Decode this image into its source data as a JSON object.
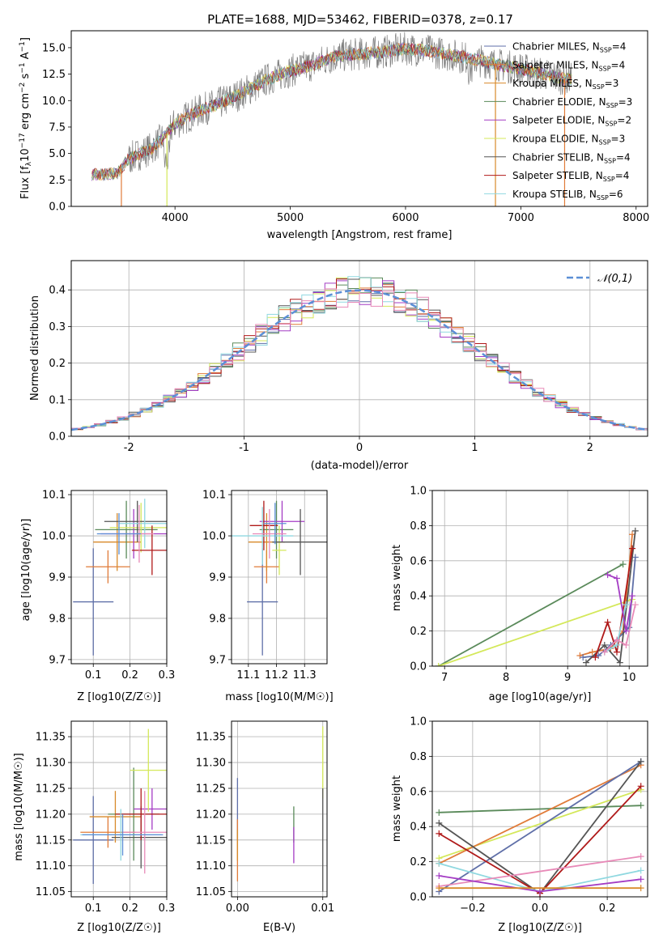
{
  "figure_title": "PLATE=1688, MJD=53462, FIBERID=0378, z=0.17",
  "colors": {
    "Chabrier MILES": "#5f6fa8",
    "Salpeter MILES": "#e07b39",
    "Kroupa MILES": "#d88a2a",
    "Chabrier ELODIE": "#5a8a5a",
    "Salpeter ELODIE": "#a43cc4",
    "Kroupa ELODIE": "#d4e85a",
    "Chabrier STELIB": "#555555",
    "Salpeter STELIB": "#b01a1a",
    "Kroupa STELIB": "#8fd8e0",
    "spectrum": "#808080",
    "normal": "#5b8fd6",
    "extra_pink": "#e88ab8",
    "extra_blue": "#5b8fd6"
  },
  "chart_data": [
    {
      "id": "spectrum",
      "type": "line",
      "title": "PLATE=1688, MJD=53462, FIBERID=0378, z=0.17",
      "xlabel": "wavelength [Angstrom, rest frame]",
      "ylabel": "Flux [f_λ10^-17 erg cm^-2 s^-1 A^-1]",
      "xlim": [
        3100,
        8100
      ],
      "ylim": [
        0,
        16.6
      ],
      "xticks": [
        4000,
        5000,
        6000,
        7000,
        8000
      ],
      "yticks": [
        0.0,
        2.5,
        5.0,
        7.5,
        10.0,
        12.5,
        15.0
      ],
      "legend_position": "top-right",
      "data_range": [
        3280,
        7440
      ],
      "continuum": {
        "x": [
          3280,
          3500,
          3600,
          3800,
          3900,
          4000,
          4200,
          4400,
          4600,
          4800,
          5000,
          5200,
          5400,
          5600,
          5800,
          6000,
          6200,
          6400,
          6600,
          6800,
          7000,
          7200,
          7400
        ],
        "y": [
          3.0,
          3.1,
          4.5,
          5.5,
          6.5,
          7.8,
          9.0,
          9.8,
          10.8,
          12.0,
          12.8,
          13.4,
          14.2,
          14.4,
          14.6,
          14.9,
          14.7,
          14.3,
          13.9,
          13.4,
          13.0,
          12.5,
          12.0
        ]
      },
      "series": [
        {
          "name": "Chabrier MILES, N_SSP=4",
          "label": "Chabrier MILES, N",
          "n_ssp": "=4"
        },
        {
          "name": "Salpeter MILES, N_SSP=4",
          "label": "Salpeter MILES, N",
          "n_ssp": "=4"
        },
        {
          "name": "Kroupa MILES, N_SSP=3",
          "label": "Kroupa MILES, N",
          "n_ssp": "=3"
        },
        {
          "name": "Chabrier ELODIE, N_SSP=3",
          "label": "Chabrier ELODIE, N",
          "n_ssp": "=3"
        },
        {
          "name": "Salpeter ELODIE, N_SSP=2",
          "label": "Salpeter ELODIE, N",
          "n_ssp": "=2"
        },
        {
          "name": "Kroupa ELODIE, N_SSP=3",
          "label": "Kroupa ELODIE, N",
          "n_ssp": "=3"
        },
        {
          "name": "Chabrier STELIB, N_SSP=4",
          "label": "Chabrier STELIB, N",
          "n_ssp": "=4"
        },
        {
          "name": "Salpeter STELIB, N_SSP=4",
          "label": "Salpeter STELIB, N",
          "n_ssp": "=4"
        },
        {
          "name": "Kroupa STELIB, N_SSP=6",
          "label": "Kroupa STELIB, N",
          "n_ssp": "=6"
        }
      ]
    },
    {
      "id": "residuals",
      "type": "histogram",
      "xlabel": "(data-model)/error",
      "ylabel": "Normed distribution",
      "xlim": [
        -2.5,
        2.5
      ],
      "ylim": [
        0,
        0.48
      ],
      "xticks": [
        -2,
        -1,
        0,
        1,
        2
      ],
      "yticks": [
        0.0,
        0.1,
        0.2,
        0.3,
        0.4
      ],
      "grid": true,
      "legend_position": "top-right",
      "normal_label": "𝒩(0,1)",
      "bin_width": 0.1,
      "bin_start": -2.5
    },
    {
      "id": "age_vs_Z",
      "type": "errorbar",
      "xlabel": "Z [log10(Z/Z☉)]",
      "ylabel": "age  [log10(age/yr)]",
      "xlim": [
        0.04,
        0.3
      ],
      "ylim": [
        9.69,
        10.11
      ],
      "xticks": [
        0.1,
        0.2,
        0.3
      ],
      "yticks": [
        9.7,
        9.8,
        9.9,
        10.0,
        10.1
      ],
      "grid": true,
      "points": [
        {
          "x": 0.1,
          "xerr": 0.055,
          "y": 9.84,
          "yerr": 0.13
        },
        {
          "x": 0.14,
          "xerr": 0.06,
          "y": 9.925,
          "yerr": 0.04
        },
        {
          "x": 0.165,
          "xerr": 0.065,
          "y": 9.985,
          "yerr": 0.07
        },
        {
          "x": 0.19,
          "xerr": 0.085,
          "y": 10.015,
          "yerr": 0.07
        },
        {
          "x": 0.21,
          "xerr": 0.09,
          "y": 10.005,
          "yerr": 0.06
        },
        {
          "x": 0.23,
          "xerr": 0.085,
          "y": 10.02,
          "yerr": 0.06
        },
        {
          "x": 0.22,
          "xerr": 0.09,
          "y": 10.035,
          "yerr": 0.05
        },
        {
          "x": 0.26,
          "xerr": 0.055,
          "y": 9.965,
          "yerr": 0.06
        },
        {
          "x": 0.24,
          "xerr": 0.07,
          "y": 10.03,
          "yerr": 0.06
        },
        {
          "x": 0.225,
          "xerr": 0.04,
          "y": 10.005,
          "yerr": 0.07
        },
        {
          "x": 0.17,
          "xerr": 0.06,
          "y": 10.005,
          "yerr": 0.05
        }
      ]
    },
    {
      "id": "age_vs_mass",
      "type": "errorbar",
      "xlabel": "mass [log10(M/M☉)]",
      "xlim": [
        11.04,
        11.38
      ],
      "ylim": [
        9.69,
        10.11
      ],
      "xticks": [
        11.1,
        11.2,
        11.3
      ],
      "yticks": [
        9.7,
        9.8,
        9.9,
        10.0,
        10.1
      ],
      "grid": true,
      "points": [
        {
          "x": 11.15,
          "xerr": 0.055,
          "y": 9.84,
          "yerr": 0.13
        },
        {
          "x": 11.165,
          "xerr": 0.045,
          "y": 9.925,
          "yerr": 0.04
        },
        {
          "x": 11.165,
          "xerr": 0.065,
          "y": 9.985,
          "yerr": 0.07
        },
        {
          "x": 11.2,
          "xerr": 0.06,
          "y": 10.015,
          "yerr": 0.07
        },
        {
          "x": 11.22,
          "xerr": 0.08,
          "y": 10.035,
          "yerr": 0.05
        },
        {
          "x": 11.21,
          "xerr": 0.025,
          "y": 9.965,
          "yerr": 0.06
        },
        {
          "x": 11.285,
          "xerr": 0.1,
          "y": 9.985,
          "yerr": 0.08
        },
        {
          "x": 11.155,
          "xerr": 0.05,
          "y": 10.025,
          "yerr": 0.06
        },
        {
          "x": 11.15,
          "xerr": 0.11,
          "y": 10.0,
          "yerr": 0.07
        },
        {
          "x": 11.175,
          "xerr": 0.06,
          "y": 10.005,
          "yerr": 0.06
        },
        {
          "x": 11.195,
          "xerr": 0.04,
          "y": 10.03,
          "yerr": 0.05
        }
      ]
    },
    {
      "id": "weight_vs_age",
      "type": "line",
      "xlabel": "age  [log10(age/yr)]",
      "ylabel": "mass weight",
      "xlim": [
        6.8,
        10.3
      ],
      "ylim": [
        0,
        1.0
      ],
      "xticks": [
        7,
        8,
        9,
        10
      ],
      "yticks": [
        0.0,
        0.2,
        0.4,
        0.6,
        0.8,
        1.0
      ],
      "grid": true,
      "series": [
        {
          "x": [
            6.9,
            9.9
          ],
          "y": [
            0.0,
            0.58
          ]
        },
        {
          "x": [
            6.9,
            10.05
          ],
          "y": [
            0.0,
            0.38
          ]
        },
        {
          "x": [
            9.2,
            9.4,
            9.7,
            9.9,
            10.05
          ],
          "y": [
            0.06,
            0.08,
            0.1,
            0.2,
            0.75
          ]
        },
        {
          "x": [
            9.25,
            9.5,
            9.7,
            10.0,
            10.1
          ],
          "y": [
            0.05,
            0.06,
            0.12,
            0.22,
            0.62
          ]
        },
        {
          "x": [
            9.3,
            9.6,
            9.85,
            10.1
          ],
          "y": [
            0.02,
            0.12,
            0.02,
            0.77
          ]
        },
        {
          "x": [
            9.45,
            9.65,
            9.8,
            10.05
          ],
          "y": [
            0.05,
            0.25,
            0.08,
            0.67
          ]
        },
        {
          "x": [
            9.6,
            9.8,
            9.95
          ],
          "y": [
            0.08,
            0.12,
            0.35
          ]
        },
        {
          "x": [
            9.6,
            9.8,
            9.95,
            10.1
          ],
          "y": [
            0.08,
            0.15,
            0.12,
            0.35
          ]
        },
        {
          "x": [
            9.65,
            9.8,
            9.95,
            10.05
          ],
          "y": [
            0.52,
            0.5,
            0.2,
            0.4
          ]
        }
      ]
    },
    {
      "id": "mass_vs_Z",
      "type": "errorbar",
      "xlabel": "Z [log10(Z/Z☉)]",
      "ylabel": "mass [log10(M/M☉)]",
      "xlim": [
        0.04,
        0.3
      ],
      "ylim": [
        11.04,
        11.38
      ],
      "xticks": [
        0.1,
        0.2,
        0.3
      ],
      "yticks": [
        11.05,
        11.1,
        11.15,
        11.2,
        11.25,
        11.3,
        11.35
      ],
      "grid": true,
      "points": [
        {
          "x": 0.1,
          "xerr": 0.055,
          "y": 11.15,
          "yerr": 0.085
        },
        {
          "x": 0.14,
          "xerr": 0.075,
          "y": 11.165,
          "yerr": 0.03
        },
        {
          "x": 0.16,
          "xerr": 0.07,
          "y": 11.195,
          "yerr": 0.05
        },
        {
          "x": 0.21,
          "xerr": 0.07,
          "y": 11.2,
          "yerr": 0.09
        },
        {
          "x": 0.26,
          "xerr": 0.05,
          "y": 11.21,
          "yerr": 0.04
        },
        {
          "x": 0.25,
          "xerr": 0.05,
          "y": 11.285,
          "yerr": 0.08
        },
        {
          "x": 0.23,
          "xerr": 0.08,
          "y": 11.155,
          "yerr": 0.06
        },
        {
          "x": 0.23,
          "xerr": 0.07,
          "y": 11.2,
          "yerr": 0.05
        },
        {
          "x": 0.175,
          "xerr": 0.11,
          "y": 11.16,
          "yerr": 0.05
        },
        {
          "x": 0.24,
          "xerr": 0.06,
          "y": 11.165,
          "yerr": 0.08
        },
        {
          "x": 0.18,
          "xerr": 0.11,
          "y": 11.16,
          "yerr": 0.04
        }
      ]
    },
    {
      "id": "mass_vs_ebv",
      "type": "errorbar",
      "xlabel": "E(B-V)",
      "xlim": [
        -0.0007,
        0.0105
      ],
      "ylim": [
        11.04,
        11.38
      ],
      "xticks": [
        0.0,
        0.01
      ],
      "ytick_labels": [
        "11.05",
        "11.10",
        "11.15",
        "11.20",
        "11.25",
        "11.30",
        "11.35"
      ],
      "yticks": [
        11.05,
        11.1,
        11.15,
        11.2,
        11.25,
        11.3,
        11.35
      ],
      "grid": true,
      "points": [
        {
          "x": 0.0,
          "xerr": 0,
          "y": 11.21,
          "yerr": 0.06
        },
        {
          "x": 0.0,
          "xerr": 0,
          "y": 11.13,
          "yerr": 0.06
        },
        {
          "x": 0.0,
          "xerr": 0,
          "y": 11.14,
          "yerr": 0.03
        },
        {
          "x": 0.0066,
          "xerr": 0,
          "y": 11.18,
          "yerr": 0.035
        },
        {
          "x": 0.0066,
          "xerr": 0,
          "y": 11.14,
          "yerr": 0.035
        },
        {
          "x": 0.01,
          "xerr": 0,
          "y": 11.3,
          "yerr": 0.07
        },
        {
          "x": 0.01,
          "xerr": 0,
          "y": 11.15,
          "yerr": 0.1
        }
      ]
    },
    {
      "id": "weight_vs_Z",
      "type": "line",
      "xlabel": "Z [log10(Z/Z☉)]",
      "ylabel": "mass weight",
      "xlim": [
        -0.32,
        0.32
      ],
      "ylim": [
        0,
        1.0
      ],
      "xticks": [
        -0.2,
        0.0,
        0.2
      ],
      "yticks": [
        0.0,
        0.2,
        0.4,
        0.6,
        0.8,
        1.0
      ],
      "grid": true,
      "series": [
        {
          "x": [
            -0.3,
            0.3
          ],
          "y": [
            0.48,
            0.52
          ]
        },
        {
          "x": [
            -0.3,
            0.3
          ],
          "y": [
            0.22,
            0.61
          ]
        },
        {
          "x": [
            -0.3,
            0.3
          ],
          "y": [
            0.19,
            0.75
          ]
        },
        {
          "x": [
            -0.3,
            0.3
          ],
          "y": [
            0.03,
            0.77
          ]
        },
        {
          "x": [
            -0.3,
            0.0,
            0.3
          ],
          "y": [
            0.42,
            0.02,
            0.77
          ]
        },
        {
          "x": [
            -0.3,
            0.0,
            0.3
          ],
          "y": [
            0.36,
            0.02,
            0.63
          ]
        },
        {
          "x": [
            -0.3,
            0.0,
            0.3
          ],
          "y": [
            0.19,
            0.03,
            0.15
          ]
        },
        {
          "x": [
            -0.3,
            0.3
          ],
          "y": [
            0.06,
            0.23
          ]
        },
        {
          "x": [
            -0.3,
            0.0,
            0.3
          ],
          "y": [
            0.12,
            0.03,
            0.1
          ]
        },
        {
          "x": [
            -0.3,
            0.3
          ],
          "y": [
            0.05,
            0.05
          ]
        }
      ]
    }
  ]
}
